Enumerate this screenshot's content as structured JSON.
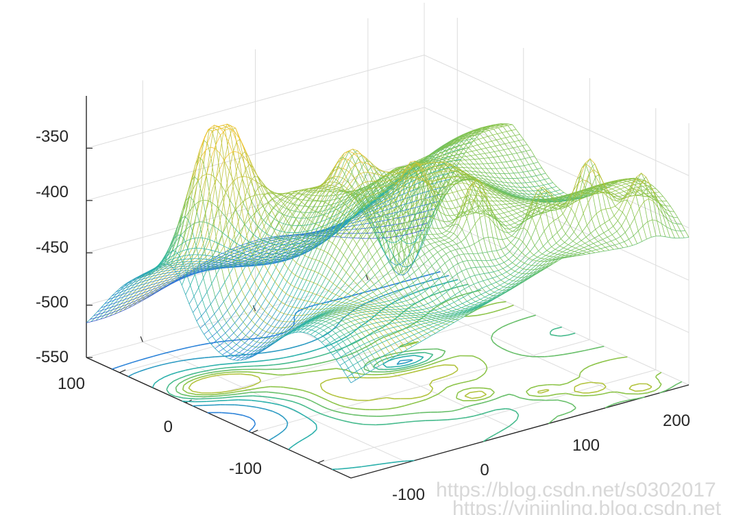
{
  "chart_data": {
    "type": "surface",
    "subtype": "mesh with contour projection (meshc)",
    "title": "",
    "xlabel": "",
    "ylabel": "",
    "zlabel": "",
    "grid": true,
    "colormap": "parula",
    "x_ticks": [
      "-100",
      "0",
      "100",
      "200"
    ],
    "y_ticks": [
      "-100",
      "0",
      "100"
    ],
    "z_ticks": [
      "-350",
      "-400",
      "-450",
      "-500",
      "-550"
    ],
    "xlim": [
      -150,
      250
    ],
    "ylim": [
      -150,
      150
    ],
    "zlim": [
      -550,
      -300
    ],
    "features": [
      {
        "x": -150,
        "y": 150,
        "z": -500
      },
      {
        "x": -20,
        "y": 110,
        "z": -320
      },
      {
        "x": 40,
        "y": -20,
        "z": -545
      },
      {
        "x": 200,
        "y": -130,
        "z": -350
      },
      {
        "x": 230,
        "y": -140,
        "z": -370
      }
    ]
  },
  "watermark": {
    "line1": "https://blog.csdn.net/s0302017",
    "line2": "https://yinjinling.blog.csdn.net"
  },
  "colors": {
    "axis": "#262626",
    "grid": "#dcdcdc",
    "colormap_low": "#3e26a8",
    "colormap_mid": "#2ab6a5",
    "colormap_high": "#f5c22a"
  }
}
